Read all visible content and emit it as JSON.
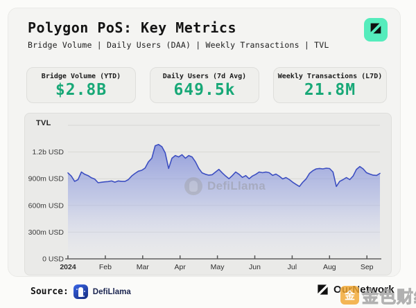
{
  "header": {
    "title": "Polygon PoS: Key Metrics",
    "subtitle": "Bridge Volume | Daily Users (DAA) | Weekly Transactions | TVL"
  },
  "brand": {
    "badge_color": "#55ecbc",
    "glyph": "diagonal-split-arrow"
  },
  "metrics": [
    {
      "label": "Bridge Volume (YTD)",
      "value": "$2.8B"
    },
    {
      "label": "Daily Users (7d Avg)",
      "value": "649.5k"
    },
    {
      "label": "Weekly Transactions (L7D)",
      "value": "21.8M"
    }
  ],
  "accent": {
    "value_color": "#18a877"
  },
  "chart_data": {
    "type": "area",
    "title": "TVL",
    "x_range": [
      "Jan 2024",
      "Sep 2024"
    ],
    "x_ticks": [
      "2024",
      "Feb",
      "Mar",
      "Apr",
      "May",
      "Jun",
      "Jul",
      "Aug",
      "Sep"
    ],
    "y_ticks": [
      {
        "value": 0,
        "label": "0 USD"
      },
      {
        "value": 300,
        "label": "300m USD"
      },
      {
        "value": 600,
        "label": "600m USD"
      },
      {
        "value": 900,
        "label": "900m USD"
      },
      {
        "value": 1200,
        "label": "1.2b USD"
      }
    ],
    "ylim": [
      0,
      1500
    ],
    "unit": "m USD",
    "grid": true,
    "line_color": "#3c4ec1",
    "fill_top": "#7280d4",
    "fill_bottom": "#e9ebf7",
    "watermark": "DefiLlama",
    "series": [
      {
        "name": "Polygon PoS TVL (m USD)",
        "values": [
          965,
          930,
          870,
          890,
          975,
          950,
          935,
          910,
          895,
          855,
          860,
          865,
          868,
          875,
          860,
          875,
          870,
          870,
          890,
          930,
          960,
          985,
          995,
          1020,
          1090,
          1130,
          1270,
          1285,
          1260,
          1190,
          1015,
          1130,
          1160,
          1145,
          1170,
          1130,
          1160,
          1145,
          1090,
          1015,
          965,
          950,
          940,
          945,
          975,
          1005,
          965,
          930,
          900,
          935,
          975,
          950,
          915,
          935,
          900,
          930,
          950,
          975,
          968,
          975,
          968,
          937,
          952,
          929,
          898,
          913,
          890,
          860,
          836,
          813,
          860,
          898,
          960,
          990,
          1010,
          1015,
          1010,
          1018,
          1014,
          975,
          813,
          870,
          890,
          913,
          890,
          930,
          1005,
          1037,
          1010,
          968,
          952,
          940,
          937,
          960
        ]
      }
    ]
  },
  "footer": {
    "source_label": "Source:",
    "source_name": "DefiLlama",
    "publisher": "OurNetwork",
    "watermark_logo": "金",
    "watermark_text": "金色财经"
  }
}
